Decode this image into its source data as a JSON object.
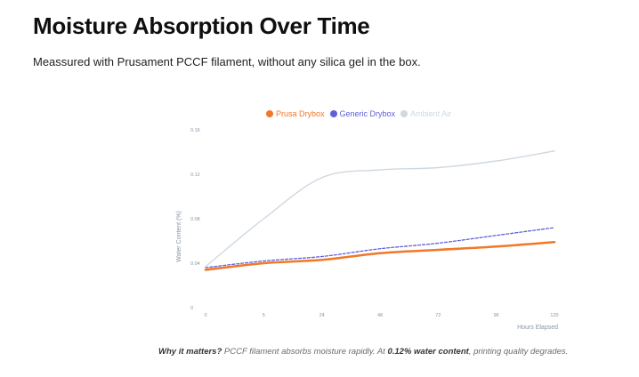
{
  "header": {
    "title": "Moisture Absorption Over Time",
    "subtitle": "Meassured with Prusament PCCF filament, without any silica gel in the box."
  },
  "footer": {
    "lead": "Why it matters?",
    "text_1": " PCCF filament absorbs moisture rapidly. At ",
    "emphasis": "0.12% water content",
    "text_2": ", printing quality degrades."
  },
  "chart_data": {
    "type": "line",
    "title": "",
    "xlabel": "Hours Elapsed",
    "ylabel": "Water Content (%)",
    "categories": [
      "0",
      "5",
      "24",
      "48",
      "72",
      "96",
      "120"
    ],
    "y_ticks": [
      "0",
      "0.04",
      "0.08",
      "0.12",
      "0.16"
    ],
    "ylim": [
      0,
      0.16
    ],
    "legend_position": "top-center",
    "grid": false,
    "series": [
      {
        "name": "Prusa Drybox",
        "color": "#f07828",
        "style": "solid-thick",
        "values": [
          0.034,
          0.04,
          0.043,
          0.049,
          0.052,
          0.055,
          0.059
        ]
      },
      {
        "name": "Generic Drybox",
        "color": "#6060d8",
        "style": "dashed",
        "values": [
          0.036,
          0.042,
          0.046,
          0.053,
          0.058,
          0.065,
          0.072
        ]
      },
      {
        "name": "Ambient Air",
        "color": "#cfd8e0",
        "style": "solid",
        "values": [
          0.037,
          0.08,
          0.117,
          0.124,
          0.126,
          0.132,
          0.141
        ]
      }
    ]
  }
}
